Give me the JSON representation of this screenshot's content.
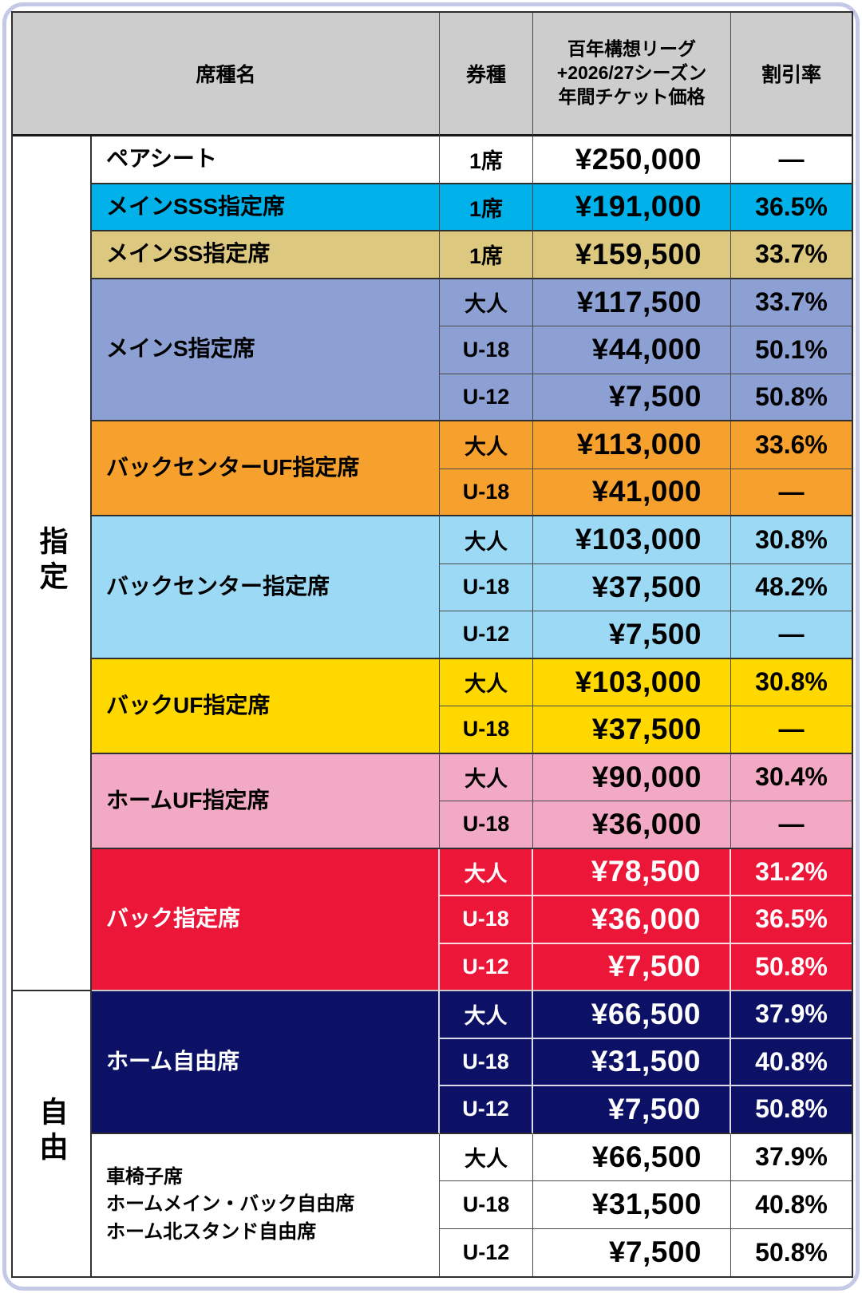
{
  "table": {
    "header": {
      "seat_name": "席種名",
      "ticket_type": "券種",
      "price_lines": [
        "百年構想リーグ",
        "+2026/27シーズン",
        "年間チケット価格"
      ],
      "discount": "割引率"
    },
    "groups": [
      {
        "label": "指定",
        "sections": [
          {
            "name_lines": [
              "ペアシート"
            ],
            "bg": "#ffffff",
            "fg": "#000000",
            "rows": [
              {
                "type": "1席",
                "price": "¥250,000",
                "discount": "—"
              }
            ]
          },
          {
            "name_lines": [
              "メインSSS指定席"
            ],
            "bg": "#00b2e9",
            "fg": "#000000",
            "rows": [
              {
                "type": "1席",
                "price": "¥191,000",
                "discount": "36.5%"
              }
            ]
          },
          {
            "name_lines": [
              "メインSS指定席"
            ],
            "bg": "#ddc87f",
            "fg": "#000000",
            "rows": [
              {
                "type": "1席",
                "price": "¥159,500",
                "discount": "33.7%"
              }
            ]
          },
          {
            "name_lines": [
              "メインS指定席"
            ],
            "bg": "#8da0d4",
            "fg": "#000000",
            "rows": [
              {
                "type": "大人",
                "price": "¥117,500",
                "discount": "33.7%"
              },
              {
                "type": "U-18",
                "price": "¥44,000",
                "discount": "50.1%"
              },
              {
                "type": "U-12",
                "price": "¥7,500",
                "discount": "50.8%"
              }
            ]
          },
          {
            "name_lines": [
              "バックセンターUF指定席"
            ],
            "bg": "#f6a02d",
            "fg": "#000000",
            "rows": [
              {
                "type": "大人",
                "price": "¥113,000",
                "discount": "33.6%"
              },
              {
                "type": "U-18",
                "price": "¥41,000",
                "discount": "—"
              }
            ]
          },
          {
            "name_lines": [
              "バックセンター指定席"
            ],
            "bg": "#9bd9f5",
            "fg": "#000000",
            "rows": [
              {
                "type": "大人",
                "price": "¥103,000",
                "discount": "30.8%"
              },
              {
                "type": "U-18",
                "price": "¥37,500",
                "discount": "48.2%"
              },
              {
                "type": "U-12",
                "price": "¥7,500",
                "discount": "—"
              }
            ]
          },
          {
            "name_lines": [
              "バックUF指定席"
            ],
            "bg": "#ffd800",
            "fg": "#000000",
            "rows": [
              {
                "type": "大人",
                "price": "¥103,000",
                "discount": "30.8%"
              },
              {
                "type": "U-18",
                "price": "¥37,500",
                "discount": "—"
              }
            ]
          },
          {
            "name_lines": [
              "ホームUF指定席"
            ],
            "bg": "#f1a9c4",
            "fg": "#000000",
            "rows": [
              {
                "type": "大人",
                "price": "¥90,000",
                "discount": "30.4%"
              },
              {
                "type": "U-18",
                "price": "¥36,000",
                "discount": "—"
              }
            ]
          },
          {
            "name_lines": [
              "バック指定席"
            ],
            "bg": "#ec1638",
            "fg": "#ffffff",
            "rows": [
              {
                "type": "大人",
                "price": "¥78,500",
                "discount": "31.2%"
              },
              {
                "type": "U-18",
                "price": "¥36,000",
                "discount": "36.5%"
              },
              {
                "type": "U-12",
                "price": "¥7,500",
                "discount": "50.8%"
              }
            ]
          }
        ]
      },
      {
        "label": "自由",
        "sections": [
          {
            "name_lines": [
              "ホーム自由席"
            ],
            "bg": "#0c1166",
            "fg": "#ffffff",
            "rows": [
              {
                "type": "大人",
                "price": "¥66,500",
                "discount": "37.9%"
              },
              {
                "type": "U-18",
                "price": "¥31,500",
                "discount": "40.8%"
              },
              {
                "type": "U-12",
                "price": "¥7,500",
                "discount": "50.8%"
              }
            ]
          },
          {
            "name_lines": [
              "車椅子席",
              "ホームメイン・バック自由席",
              "ホーム北スタンド自由席"
            ],
            "bg": "#ffffff",
            "fg": "#000000",
            "rows": [
              {
                "type": "大人",
                "price": "¥66,500",
                "discount": "37.9%"
              },
              {
                "type": "U-18",
                "price": "¥31,500",
                "discount": "40.8%"
              },
              {
                "type": "U-12",
                "price": "¥7,500",
                "discount": "50.8%"
              }
            ]
          }
        ]
      }
    ],
    "colors": {
      "header_bg": "#cdcdcd",
      "frame": "#c5c9e8",
      "dark_divider": "#4a4a4a",
      "section_divider": "#2e2e2e",
      "light_divider_on_dark": "rgba(255,255,255,0.85)",
      "red_navy_divider": "#c9c9c9"
    }
  }
}
